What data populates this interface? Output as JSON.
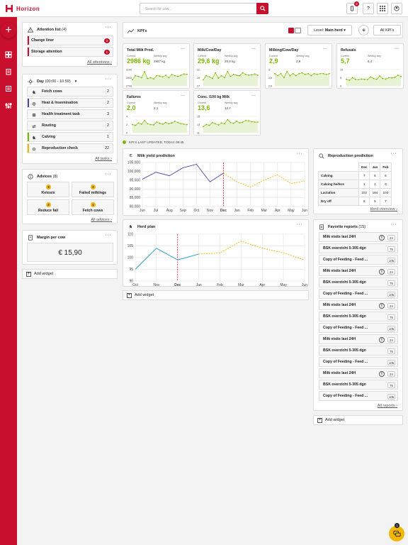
{
  "app": {
    "name": "Horizon"
  },
  "search": {
    "placeholder": "Search for cow..."
  },
  "topbar": {
    "notifications_count": "2",
    "help_label": "?"
  },
  "attention": {
    "title": "Attention list",
    "count": "(4)",
    "items": [
      {
        "label": "Change liner",
        "count": "3"
      },
      {
        "label": "Storage attention",
        "count": "1"
      }
    ],
    "link": "All attentions"
  },
  "day": {
    "title": "Day",
    "time": "(00:00 - 10:59)",
    "tasks": [
      {
        "label": "Fetch cows",
        "count": "2"
      },
      {
        "label": "Heat & Insemination",
        "count": "2"
      },
      {
        "label": "Health treatment task",
        "count": "3"
      },
      {
        "label": "Routing",
        "count": "2"
      },
      {
        "label": "Calving",
        "count": "1"
      },
      {
        "label": "Reproduction check",
        "count": "22"
      }
    ],
    "link": "All tasks"
  },
  "advices": {
    "title": "Advices",
    "count": "(8)",
    "items": [
      {
        "label": "Ketosis",
        "count": "3"
      },
      {
        "label": "Failed milkings",
        "count": "2"
      },
      {
        "label": "Reduce fail",
        "count": "2"
      },
      {
        "label": "Fetch cows",
        "count": "1"
      }
    ],
    "link": "All advices"
  },
  "margin": {
    "title": "Margin per cow",
    "value": "€ 15,90"
  },
  "add_widget": "Add widget",
  "kpis": {
    "title": "KPI's",
    "level_label": "Level:",
    "level_value": "Main herd",
    "all_button": "All KPI's",
    "last_updated": "KPI'S LAST UPDATED, TODAY 09:45",
    "current_label": "Current",
    "weekly_label": "Weekly avg",
    "cards": [
      {
        "title": "Total Milk Prod.",
        "current": "2986 kg",
        "weekly": "2987 kg",
        "ticks": [
          "3100",
          "2900",
          "2700"
        ]
      },
      {
        "title": "Milk/Cow/Day",
        "current": "29,6 kg",
        "weekly": "29,8 kg",
        "ticks": [
          "31",
          "29",
          "27"
        ]
      },
      {
        "title": "Milking/Cow/Day",
        "current": "2,9",
        "weekly": "2,9",
        "ticks": [
          "3",
          "2,8",
          "2,6"
        ]
      },
      {
        "title": "Refusals",
        "current": "5,7",
        "weekly": "6,4",
        "ticks": [
          "10",
          "5",
          "0"
        ]
      },
      {
        "title": "Failures",
        "current": "2,0",
        "weekly": "2,1",
        "ticks": [
          "4",
          "2",
          "0"
        ]
      },
      {
        "title": "Conc. /100 kg Milk",
        "current": "13,6",
        "weekly": "13,7",
        "ticks": [
          "15",
          "13",
          "11"
        ]
      }
    ]
  },
  "milk_yield": {
    "title": "Milk yield prediction"
  },
  "herd_plan": {
    "title": "Herd plan"
  },
  "repro": {
    "title": "Reproduction prediction",
    "cols": [
      "Dec",
      "Jan",
      "Feb"
    ],
    "rows": [
      {
        "label": "Calving",
        "values": [
          "7",
          "6",
          "6"
        ]
      },
      {
        "label": "Calving heifers",
        "values": [
          "1",
          "1",
          "0"
        ]
      },
      {
        "label": "Lactation",
        "values": [
          "102",
          "104",
          "103"
        ]
      },
      {
        "label": "Dry off",
        "values": [
          "8",
          "5",
          "7"
        ]
      }
    ],
    "link": "Herd overview"
  },
  "favorites": {
    "title": "Favorite reports",
    "count": "(15)",
    "items": [
      {
        "label": "Milk visits last 24H",
        "count": "24",
        "info": true
      },
      {
        "label": "BSK overzicht 5-305 dgn",
        "count": "75",
        "info": false
      },
      {
        "label": "Copy of Feeding - Feed ...",
        "count": "105",
        "info": false
      },
      {
        "label": "Milk visits last 24H",
        "count": "24",
        "info": true
      },
      {
        "label": "BSK overzicht 5-305 dgn",
        "count": "75",
        "info": false
      },
      {
        "label": "Copy of Feeding - Feed ...",
        "count": "105",
        "info": false
      },
      {
        "label": "Milk visits last 24H",
        "count": "24",
        "info": true
      },
      {
        "label": "BSK overzicht 5-305 dgn",
        "count": "75",
        "info": false
      },
      {
        "label": "Copy of Feeding - Feed ...",
        "count": "105",
        "info": false
      },
      {
        "label": "Milk visits last 24H",
        "count": "24",
        "info": true
      },
      {
        "label": "BSK overzicht 5-305 dgn",
        "count": "75",
        "info": false
      },
      {
        "label": "Copy of Feeding - Feed ...",
        "count": "105",
        "info": false
      },
      {
        "label": "Milk visits last 24H",
        "count": "24",
        "info": true
      },
      {
        "label": "BSK overzicht 5-305 dgn",
        "count": "75",
        "info": false
      },
      {
        "label": "Copy of Feeding - Feed ...",
        "count": "105",
        "info": false
      }
    ],
    "link": "All reports"
  },
  "chat": {
    "count": "1"
  },
  "chart_data": [
    {
      "type": "line",
      "x": [
        "Jun",
        "Jul",
        "Aug",
        "Sep",
        "Oct",
        "Nov",
        "Dec",
        "Jan",
        "Feb",
        "Mar",
        "Apr",
        "May",
        "Jun"
      ],
      "series": [
        {
          "values": [
            95.5,
            99.5,
            97.5,
            102,
            104,
            94,
            99,
            null,
            null,
            null,
            null,
            null,
            null
          ]
        },
        {
          "values": [
            null,
            null,
            null,
            null,
            null,
            null,
            99,
            94,
            91,
            95,
            98,
            93,
            94.5
          ]
        }
      ],
      "ylim": [
        80,
        105
      ],
      "yticks": [
        "105,000",
        "100,000",
        "95,000",
        "90,000",
        "85,000",
        "80,000"
      ],
      "highlight": "Dec",
      "colors": {
        "actual": "#4a4aa8",
        "prediction": "#f2b705",
        "today": "#c8102e"
      }
    },
    {
      "type": "line",
      "x": [
        "Oct",
        "Nov",
        "Dec",
        "Jan",
        "Feb",
        "Mar",
        "Apr",
        "May",
        "Jun"
      ],
      "series": [
        {
          "values": [
            95,
            104,
            99,
            101.5,
            null,
            null,
            null,
            null,
            null
          ]
        },
        {
          "values": [
            null,
            null,
            null,
            101.5,
            102,
            107,
            104,
            102,
            99
          ]
        }
      ],
      "ylim": [
        90,
        110
      ],
      "yticks": [
        "110",
        "105",
        "100",
        "95",
        "90"
      ],
      "highlight": "Dec",
      "colors": {
        "actual": "#1f9bcf",
        "prediction": "#f2b705",
        "today": "#c8102e"
      }
    },
    {
      "type": "area",
      "title": "Total Milk Prod.",
      "values": [
        2850,
        2950,
        2930,
        2900,
        3050,
        2880,
        2900,
        2870,
        2950,
        2940,
        2920,
        2960,
        2900,
        2980,
        2950,
        2930,
        2960,
        2990,
        2980
      ],
      "ylim": [
        2700,
        3100
      ]
    },
    {
      "type": "area",
      "title": "Milk/Cow/Day",
      "values": [
        28.5,
        29.5,
        29.2,
        28.8,
        30.2,
        28.9,
        29.5,
        29.0,
        30.5,
        29.3,
        29.8,
        29.6,
        29.5,
        30.2,
        29.8,
        29.6,
        29.7,
        29.9,
        29.6
      ],
      "ylim": [
        27,
        31
      ]
    },
    {
      "type": "area",
      "title": "Milking/Cow/Day",
      "values": [
        2.9,
        2.85,
        2.9,
        2.8,
        2.95,
        2.85,
        2.9,
        2.85,
        2.9,
        2.92,
        2.88,
        2.9,
        2.85,
        2.9,
        2.88,
        2.9,
        2.9,
        2.88,
        2.9
      ],
      "ylim": [
        2.6,
        3
      ]
    },
    {
      "type": "area",
      "title": "Refusals",
      "values": [
        4,
        3.5,
        5,
        4,
        3.8,
        4.2,
        4,
        3.9,
        5.5,
        4.5,
        4,
        6,
        4.5,
        4.2,
        5,
        4.8,
        5.2,
        6.5,
        5.7
      ],
      "ylim": [
        0,
        10
      ]
    },
    {
      "type": "area",
      "title": "Failures",
      "values": [
        2,
        1.8,
        2.4,
        2.1,
        3,
        2.2,
        2,
        1.9,
        2.6,
        2.3,
        2.1,
        2.5,
        2.2,
        2.4,
        2.8,
        2.5,
        2.2,
        2.1,
        2.0
      ],
      "ylim": [
        0,
        4
      ]
    },
    {
      "type": "area",
      "title": "Conc. /100 kg Milk",
      "values": [
        12.5,
        13,
        12.8,
        13.5,
        13.2,
        12.9,
        13.4,
        13.2,
        14.2,
        13.5,
        13.3,
        13.8,
        13.4,
        13.6,
        14,
        13.9,
        13.7,
        13.6,
        13.6
      ],
      "ylim": [
        11,
        15
      ]
    }
  ]
}
